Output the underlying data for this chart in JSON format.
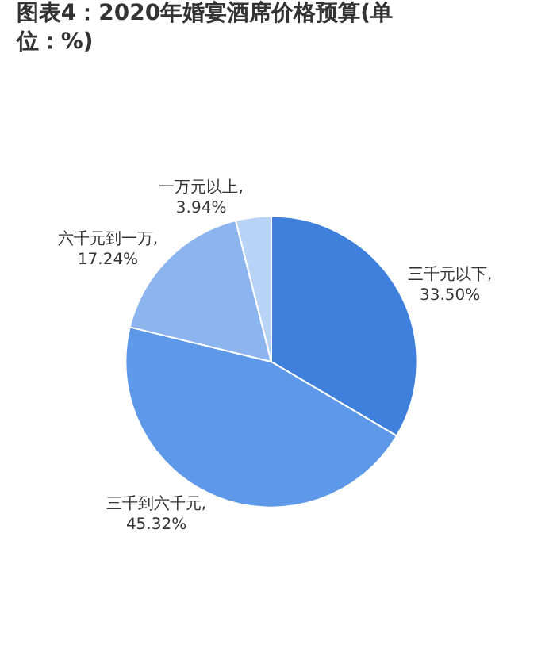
{
  "chart_data": {
    "type": "pie",
    "title": "图表4：2020年婚宴酒席价格预算(单位：%)",
    "categories": [
      "三千元以下",
      "三千到六千元",
      "六千元到一万",
      "一万元以上"
    ],
    "values": [
      33.5,
      45.32,
      17.24,
      3.94
    ],
    "value_labels": [
      ",\n33.50%",
      ",\n45.32%",
      ",\n17.24%",
      ",\n3.94%"
    ],
    "colors": [
      "#3f80dc",
      "#5e98e8",
      "#8cb5ef",
      "#b8d3f6"
    ],
    "legend": false
  }
}
